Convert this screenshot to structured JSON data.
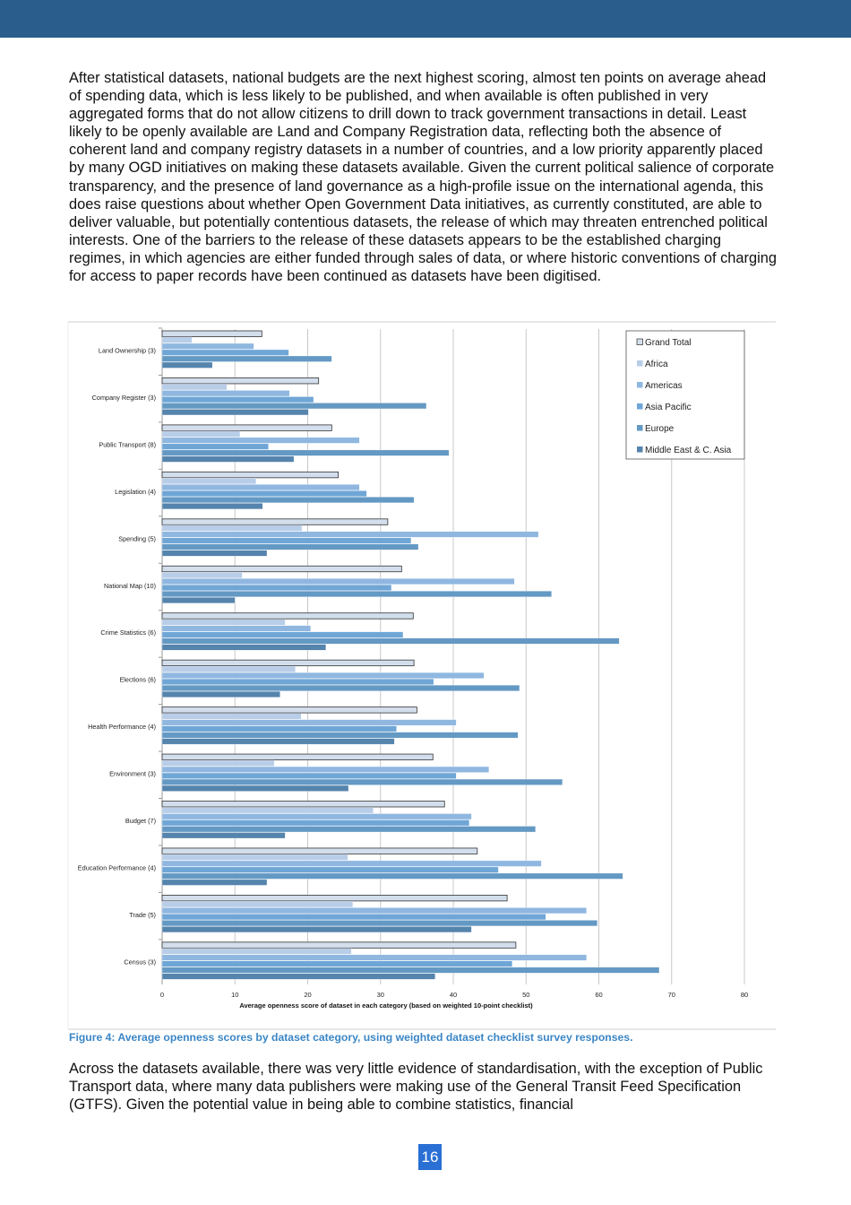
{
  "body": {
    "paragraph_1": "After statistical datasets, national budgets are the next highest scoring, almost ten points on average ahead of spending data, which is less likely to be published, and when available is often published in very aggregated forms that do not allow citizens to drill down to track government transactions in detail. Least likely to be openly available are Land and Company Registration data, reflecting both the absence of coherent land and company registry datasets in a number of countries, and a low priority apparently placed by many OGD initiatives on making these datasets available. Given the current political salience of corporate transparency, and the presence of land governance as a high-profile issue on the international agenda, this does raise questions about whether Open Government Data initiatives, as currently constituted, are able to deliver valuable, but potentially contentious datasets, the release of which may threaten entrenched political interests. One of the barriers to the release of these datasets appears to be the established charging regimes, in which agencies are either funded through sales of data, or where historic conventions of charging for access to paper records have been continued as datasets have been digitised.",
    "paragraph_2": "Across the datasets available, there was very little evidence of standardisation, with the exception of Public Transport data, where many data publishers were making use of the General Transit Feed Specification (GTFS). Given the potential value in being able to combine statistics, financial",
    "caption": "Figure 4: Average openness scores by dataset category, using weighted dataset checklist survey responses.",
    "page_number": "16"
  },
  "colors": {
    "header_bar": "#2a5d8c",
    "caption": "#3b86c6",
    "page_number_bg": "#2a6fd4"
  },
  "chart_data": {
    "type": "bar",
    "orientation": "horizontal",
    "xlabel": "Average openness score of dataset in each category (based on weighted 10-point checklist)",
    "xlim": [
      0,
      80
    ],
    "xticks": [
      "0",
      "10",
      "20",
      "30",
      "40",
      "50",
      "60",
      "70",
      "80"
    ],
    "grid": true,
    "legend_position": "top-right",
    "categories": [
      "Land Ownership (3)",
      "Company Register (3)",
      "Public Transport (8)",
      "Legislation (4)",
      "Spending (5)",
      "National Map (10)",
      "Crime Statistics (6)",
      "Elections (6)",
      "Health Performance (4)",
      "Environment (3)",
      "Budget (7)",
      "Education Performance (4)",
      "Trade (5)",
      "Census (3)"
    ],
    "series": [
      {
        "name": "Grand Total",
        "color": "#d3deed",
        "values": [
          13.7,
          21.5,
          23.3,
          24.2,
          31.0,
          32.9,
          34.5,
          34.6,
          35.0,
          37.2,
          38.8,
          43.3,
          47.4,
          48.6
        ]
      },
      {
        "name": "Africa",
        "color": "#b8cde8",
        "values": [
          4.1,
          8.9,
          10.7,
          12.9,
          19.2,
          11.0,
          16.9,
          18.3,
          19.1,
          15.4,
          29.0,
          25.5,
          26.2,
          26.0
        ]
      },
      {
        "name": "Americas",
        "color": "#8fb7e0",
        "values": [
          12.6,
          17.5,
          27.1,
          27.1,
          51.7,
          48.4,
          20.4,
          44.2,
          40.4,
          44.9,
          42.5,
          52.1,
          58.3,
          58.3
        ]
      },
      {
        "name": "Asia Pacific",
        "color": "#6fa6d6",
        "values": [
          17.4,
          20.8,
          14.6,
          28.1,
          34.2,
          31.5,
          33.1,
          37.3,
          32.2,
          40.4,
          42.2,
          46.2,
          52.7,
          48.1
        ]
      },
      {
        "name": "Europe",
        "color": "#6499c4",
        "values": [
          23.3,
          36.3,
          39.4,
          34.6,
          35.2,
          53.5,
          62.8,
          49.1,
          48.9,
          55.0,
          51.3,
          63.3,
          59.8,
          68.3
        ]
      },
      {
        "name": "Middle East & C. Asia",
        "color": "#5584ad",
        "values": [
          6.9,
          20.1,
          18.1,
          13.8,
          14.4,
          10.0,
          22.5,
          16.2,
          31.9,
          25.6,
          16.9,
          14.4,
          42.5,
          37.5
        ]
      }
    ]
  }
}
